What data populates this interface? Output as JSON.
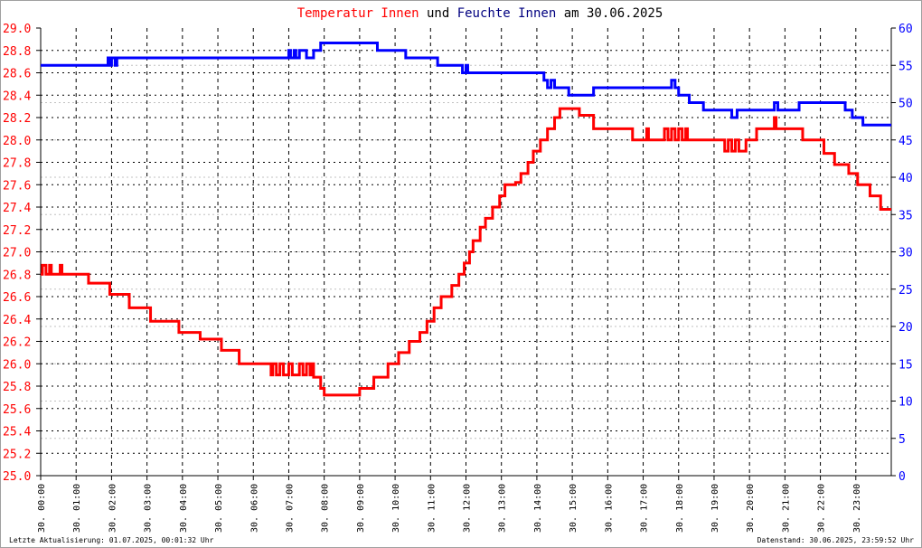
{
  "chart_data": {
    "type": "line",
    "title": {
      "parts": [
        {
          "text": "Temperatur Innen",
          "color": "#ff0000"
        },
        {
          "text": " und ",
          "color": "#000000"
        },
        {
          "text": "Feuchte Innen",
          "color": "#000080"
        },
        {
          "text": " am 30.06.2025",
          "color": "#000000"
        }
      ]
    },
    "x_axis": {
      "range_hours": [
        0,
        24
      ],
      "tick_labels": [
        "30. 00:00",
        "30. 01:00",
        "30. 02:00",
        "30. 03:00",
        "30. 04:00",
        "30. 05:00",
        "30. 06:00",
        "30. 07:00",
        "30. 08:00",
        "30. 09:00",
        "30. 10:00",
        "30. 11:00",
        "30. 12:00",
        "30. 13:00",
        "30. 14:00",
        "30. 15:00",
        "30. 16:00",
        "30. 17:00",
        "30. 18:00",
        "30. 19:00",
        "30. 20:00",
        "30. 21:00",
        "30. 22:00",
        "30. 23:00"
      ]
    },
    "y_left": {
      "range": [
        25.0,
        29.0
      ],
      "step": 0.2,
      "color": "#ff0000",
      "tick_labels": [
        "25.0",
        "25.2",
        "25.4",
        "25.6",
        "25.8",
        "26.0",
        "26.2",
        "26.4",
        "26.6",
        "26.8",
        "27.0",
        "27.2",
        "27.4",
        "27.6",
        "27.8",
        "28.0",
        "28.2",
        "28.4",
        "28.6",
        "28.8",
        "29.0"
      ]
    },
    "y_right": {
      "range": [
        0,
        60
      ],
      "step": 5,
      "color": "#0000ff",
      "tick_labels": [
        "0",
        "5",
        "10",
        "15",
        "20",
        "25",
        "30",
        "35",
        "40",
        "45",
        "50",
        "55",
        "60"
      ]
    },
    "grid": true,
    "series": [
      {
        "name": "Temperatur Innen",
        "axis": "left",
        "color": "#ff0000",
        "step": true,
        "points": [
          [
            0,
            26.8
          ],
          [
            0.05,
            26.88
          ],
          [
            0.15,
            26.8
          ],
          [
            0.25,
            26.88
          ],
          [
            0.3,
            26.8
          ],
          [
            0.55,
            26.88
          ],
          [
            0.6,
            26.8
          ],
          [
            1.35,
            26.72
          ],
          [
            1.95,
            26.62
          ],
          [
            2.5,
            26.5
          ],
          [
            3.1,
            26.38
          ],
          [
            3.9,
            26.28
          ],
          [
            4.5,
            26.22
          ],
          [
            5.1,
            26.12
          ],
          [
            5.6,
            26.0
          ],
          [
            6.5,
            25.9
          ],
          [
            6.55,
            26.0
          ],
          [
            6.65,
            25.9
          ],
          [
            6.75,
            26.0
          ],
          [
            6.85,
            25.9
          ],
          [
            7.0,
            26.0
          ],
          [
            7.1,
            25.9
          ],
          [
            7.3,
            26.0
          ],
          [
            7.4,
            25.9
          ],
          [
            7.5,
            26.0
          ],
          [
            7.6,
            25.9
          ],
          [
            7.65,
            26.0
          ],
          [
            7.7,
            25.88
          ],
          [
            7.9,
            25.78
          ],
          [
            8.0,
            25.72
          ],
          [
            9.0,
            25.78
          ],
          [
            9.4,
            25.88
          ],
          [
            9.8,
            26.0
          ],
          [
            10.1,
            26.1
          ],
          [
            10.4,
            26.2
          ],
          [
            10.7,
            26.28
          ],
          [
            10.9,
            26.38
          ],
          [
            11.1,
            26.5
          ],
          [
            11.3,
            26.6
          ],
          [
            11.6,
            26.7
          ],
          [
            11.8,
            26.8
          ],
          [
            11.95,
            26.9
          ],
          [
            12.1,
            27.0
          ],
          [
            12.2,
            27.1
          ],
          [
            12.4,
            27.22
          ],
          [
            12.55,
            27.3
          ],
          [
            12.75,
            27.4
          ],
          [
            12.95,
            27.5
          ],
          [
            13.1,
            27.6
          ],
          [
            13.4,
            27.62
          ],
          [
            13.55,
            27.7
          ],
          [
            13.75,
            27.8
          ],
          [
            13.9,
            27.9
          ],
          [
            14.1,
            28.0
          ],
          [
            14.3,
            28.1
          ],
          [
            14.5,
            28.2
          ],
          [
            14.65,
            28.28
          ],
          [
            15.2,
            28.22
          ],
          [
            15.6,
            28.1
          ],
          [
            16.7,
            28.0
          ],
          [
            17.1,
            28.1
          ],
          [
            17.15,
            28.0
          ],
          [
            17.6,
            28.1
          ],
          [
            17.7,
            28.0
          ],
          [
            17.8,
            28.1
          ],
          [
            17.9,
            28.0
          ],
          [
            18.0,
            28.1
          ],
          [
            18.1,
            28.0
          ],
          [
            18.2,
            28.1
          ],
          [
            18.25,
            28.0
          ],
          [
            19.3,
            27.9
          ],
          [
            19.4,
            28.0
          ],
          [
            19.5,
            27.9
          ],
          [
            19.6,
            28.0
          ],
          [
            19.7,
            27.9
          ],
          [
            19.9,
            28.0
          ],
          [
            20.2,
            28.1
          ],
          [
            20.7,
            28.2
          ],
          [
            20.75,
            28.1
          ],
          [
            21.5,
            28.0
          ],
          [
            22.1,
            27.88
          ],
          [
            22.4,
            27.78
          ],
          [
            22.8,
            27.7
          ],
          [
            23.05,
            27.6
          ],
          [
            23.4,
            27.5
          ],
          [
            23.7,
            27.38
          ],
          [
            24,
            27.38
          ]
        ]
      },
      {
        "name": "Feuchte Innen",
        "axis": "right",
        "color": "#0000ff",
        "step": true,
        "points": [
          [
            0,
            55
          ],
          [
            1.9,
            56
          ],
          [
            1.95,
            55
          ],
          [
            2.0,
            56
          ],
          [
            2.1,
            55
          ],
          [
            2.15,
            56
          ],
          [
            7.0,
            57
          ],
          [
            7.05,
            56
          ],
          [
            7.15,
            57
          ],
          [
            7.2,
            56
          ],
          [
            7.3,
            57
          ],
          [
            7.5,
            56
          ],
          [
            7.7,
            57
          ],
          [
            7.9,
            58
          ],
          [
            9.5,
            57
          ],
          [
            10.3,
            56
          ],
          [
            11.2,
            55
          ],
          [
            11.9,
            54
          ],
          [
            12.0,
            55
          ],
          [
            12.05,
            54
          ],
          [
            14.2,
            53
          ],
          [
            14.3,
            52
          ],
          [
            14.4,
            53
          ],
          [
            14.5,
            52
          ],
          [
            14.9,
            51
          ],
          [
            15.6,
            52
          ],
          [
            17.8,
            53
          ],
          [
            17.9,
            52
          ],
          [
            18.0,
            51
          ],
          [
            18.3,
            50
          ],
          [
            18.7,
            49
          ],
          [
            19.5,
            48
          ],
          [
            19.65,
            49
          ],
          [
            20.7,
            50
          ],
          [
            20.8,
            49
          ],
          [
            21.4,
            50
          ],
          [
            22.7,
            49
          ],
          [
            22.9,
            48
          ],
          [
            23.2,
            47
          ],
          [
            24,
            47
          ]
        ]
      }
    ]
  },
  "footer": {
    "last_update": "Letzte Aktualisierung: 01.07.2025, 00:01:32 Uhr",
    "data_as_of": "Datenstand: 30.06.2025, 23:59:52 Uhr"
  }
}
